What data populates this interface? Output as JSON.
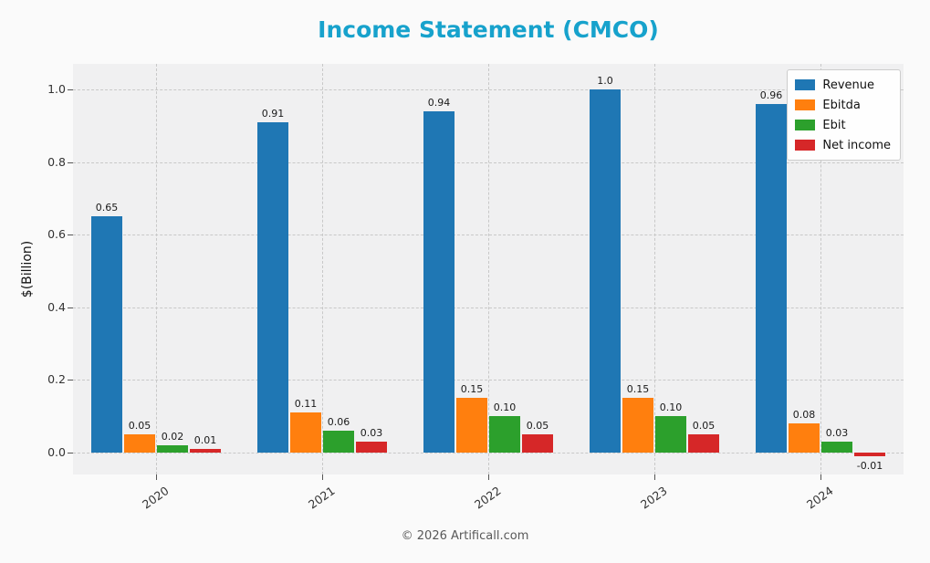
{
  "style": {
    "title_color": "#17a2cc",
    "figure_background": "#fafafa",
    "plot_background": "#f0f0f1"
  },
  "footer": "© 2026 Artificall.com",
  "chart_data": {
    "type": "bar",
    "title": "Income Statement (CMCO)",
    "xlabel": "",
    "ylabel": "$(Billion)",
    "categories": [
      "2020",
      "2021",
      "2022",
      "2023",
      "2024"
    ],
    "series": [
      {
        "name": "Revenue",
        "color": "#1f77b4",
        "values": [
          0.65,
          0.91,
          0.94,
          1.0,
          0.96
        ],
        "labels": [
          "0.65",
          "0.91",
          "0.94",
          "1.0",
          "0.96"
        ]
      },
      {
        "name": "Ebitda",
        "color": "#ff7f0e",
        "values": [
          0.05,
          0.11,
          0.15,
          0.15,
          0.08
        ],
        "labels": [
          "0.05",
          "0.11",
          "0.15",
          "0.15",
          "0.08"
        ]
      },
      {
        "name": "Ebit",
        "color": "#2ca02c",
        "values": [
          0.02,
          0.06,
          0.1,
          0.1,
          0.03
        ],
        "labels": [
          "0.02",
          "0.06",
          "0.10",
          "0.10",
          "0.03"
        ]
      },
      {
        "name": "Net income",
        "color": "#d62728",
        "values": [
          0.01,
          0.03,
          0.05,
          0.05,
          -0.01
        ],
        "labels": [
          "0.01",
          "0.03",
          "0.05",
          "0.05",
          "-0.01"
        ]
      }
    ],
    "yticks": [
      0.0,
      0.2,
      0.4,
      0.6,
      0.8,
      1.0
    ],
    "ytick_labels": [
      "0.0",
      "0.2",
      "0.4",
      "0.6",
      "0.8",
      "1.0"
    ],
    "ylim": [
      -0.06,
      1.07
    ],
    "grid": true,
    "grid_style": "dashed",
    "legend_position": "upper right"
  }
}
